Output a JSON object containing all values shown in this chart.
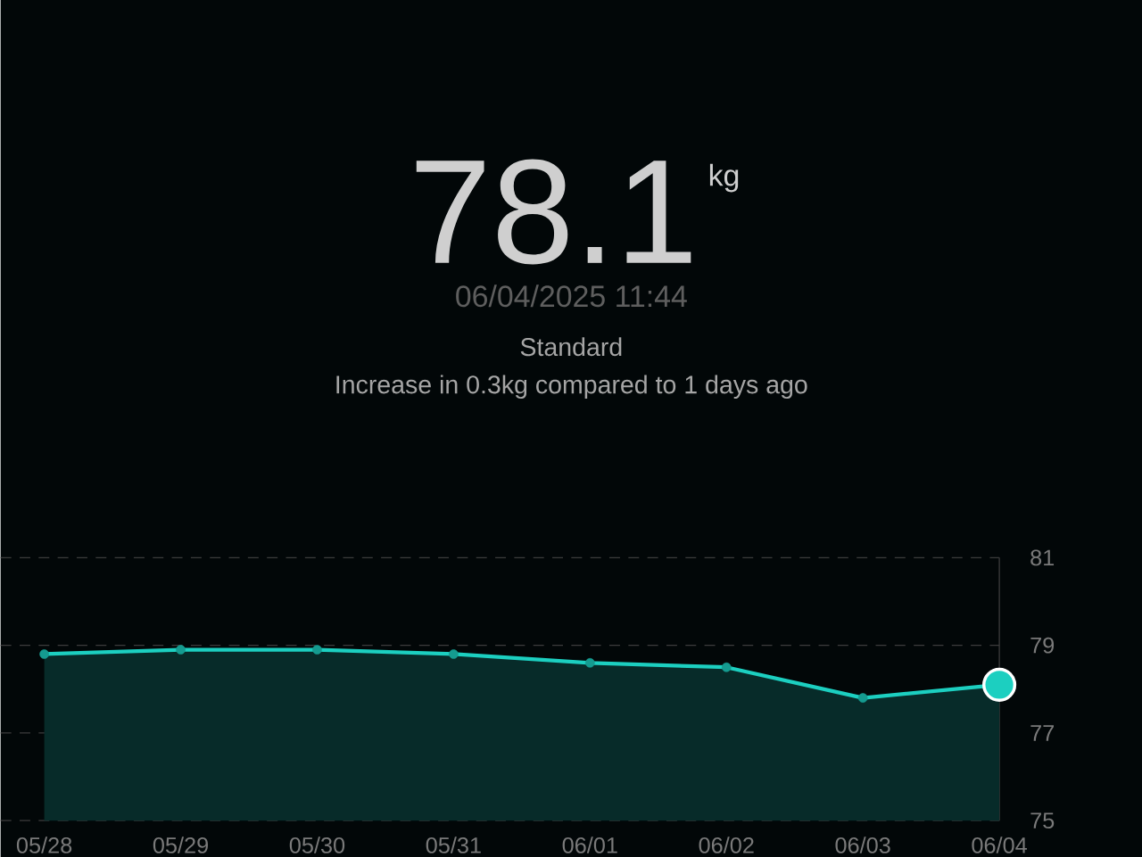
{
  "chart_data": {
    "type": "area",
    "title": "78.1",
    "annotations": [
      "kg",
      "06/04/2025 11:44",
      "Standard",
      "Increase in 0.3kg compared to 1 days ago"
    ],
    "categories": [
      "05/28",
      "05/29",
      "05/30",
      "05/31",
      "06/01",
      "06/02",
      "06/03",
      "06/04"
    ],
    "series": [
      {
        "color": "#1ccfc0",
        "values": [
          78.8,
          78.9,
          78.9,
          78.8,
          78.6,
          78.5,
          77.8,
          78.1
        ]
      }
    ],
    "ylim": [
      75,
      81
    ],
    "yticks": [
      75,
      77,
      79,
      81
    ],
    "grid": "y",
    "marker": "circle",
    "line_style": "solid"
  }
}
